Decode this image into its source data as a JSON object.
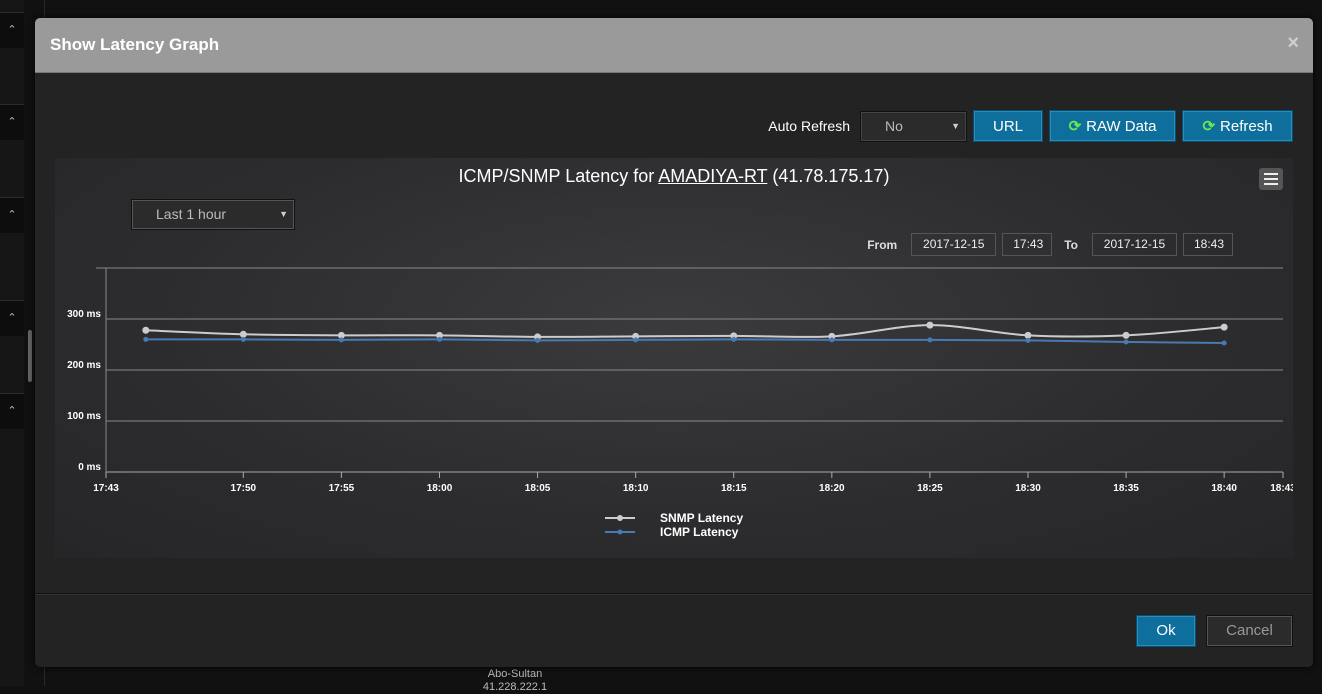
{
  "background": {
    "tab_icon": "⌃",
    "footer_text": "Abo-Sultan",
    "footer_sub": "41.228.222.1"
  },
  "modal": {
    "title": "Show Latency Graph",
    "close_icon": "×"
  },
  "toolbar": {
    "auto_refresh_label": "Auto Refresh",
    "auto_refresh_value": "No",
    "url_label": "URL",
    "raw_label": "RAW Data",
    "refresh_label": "Refresh"
  },
  "chart_controls": {
    "range_value": "Last 1 hour",
    "from_label": "From",
    "to_label": "To",
    "from_date": "2017-12-15",
    "from_time": "17:43",
    "to_date": "2017-12-15",
    "to_time": "18:43"
  },
  "chart_data": {
    "type": "line",
    "title_prefix": "ICMP/SNMP Latency for",
    "title_host": "AMADIYA-RT",
    "title_suffix": "(41.78.175.17)",
    "y_ticks": [
      "0 ms",
      "100 ms",
      "200 ms",
      "300 ms"
    ],
    "ylim": [
      0,
      400
    ],
    "x_ticks": [
      "17:43",
      "17:50",
      "17:55",
      "18:00",
      "18:05",
      "18:10",
      "18:15",
      "18:20",
      "18:25",
      "18:30",
      "18:35",
      "18:40",
      "18:43"
    ],
    "x_minutes": [
      0,
      7,
      12,
      17,
      22,
      27,
      32,
      37,
      42,
      47,
      52,
      57,
      60
    ],
    "point_minutes": [
      2.03,
      7,
      12,
      17,
      22,
      27,
      32,
      37,
      42,
      47,
      52,
      57
    ],
    "series": [
      {
        "name": "SNMP Latency",
        "color": "#cccccc",
        "values": [
          278,
          270,
          268,
          268,
          265,
          266,
          267,
          266,
          288,
          268,
          268,
          284
        ]
      },
      {
        "name": "ICMP Latency",
        "color": "#4a78b3",
        "values": [
          260,
          260,
          259,
          260,
          258,
          259,
          260,
          259,
          259,
          258,
          255,
          253
        ]
      }
    ],
    "grid": true,
    "legend": "bottom-center"
  },
  "footer": {
    "ok_label": "Ok",
    "cancel_label": "Cancel"
  }
}
